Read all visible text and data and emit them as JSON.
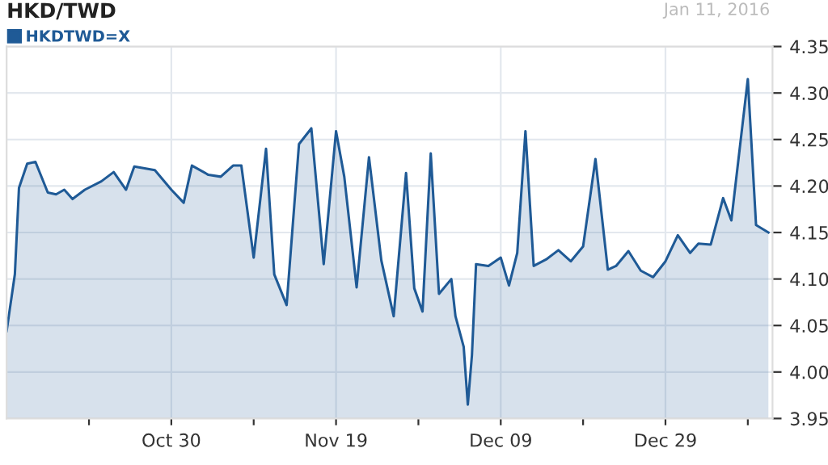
{
  "chart_data": {
    "type": "area",
    "title": "HKD/TWD",
    "subtitle": "Jan 11, 2016",
    "x": [
      "2015-10-10",
      "2015-10-11",
      "2015-10-11T12:00",
      "2015-10-12T12:00",
      "2015-10-13T12:00",
      "2015-10-15",
      "2015-10-16",
      "2015-10-17",
      "2015-10-18",
      "2015-10-19T12:00",
      "2015-10-21T12:00",
      "2015-10-23",
      "2015-10-24T12:00",
      "2015-10-25T12:00",
      "2015-10-28",
      "2015-10-30",
      "2015-10-31T12:00",
      "2015-11-01T12:00",
      "2015-11-03T12:00",
      "2015-11-05",
      "2015-11-06T12:00",
      "2015-11-07T12:00",
      "2015-11-09",
      "2015-11-10T12:00",
      "2015-11-11T12:00",
      "2015-11-13",
      "2015-11-14T12:00",
      "2015-11-16",
      "2015-11-17T12:00",
      "2015-11-19",
      "2015-11-20",
      "2015-11-21T12:00",
      "2015-11-23",
      "2015-11-24T12:00",
      "2015-11-26",
      "2015-11-27T12:00",
      "2015-11-28T12:00",
      "2015-11-29T12:00",
      "2015-11-30T12:00",
      "2015-12-01T12:00",
      "2015-12-03",
      "2015-12-03T12:00",
      "2015-12-04T12:00",
      "2015-12-05",
      "2015-12-05T12:00",
      "2015-12-06",
      "2015-12-07T12:00",
      "2015-12-09",
      "2015-12-10",
      "2015-12-11",
      "2015-12-12",
      "2015-12-13",
      "2015-12-14T12:00",
      "2015-12-16",
      "2015-12-17T12:00",
      "2015-12-19",
      "2015-12-20T12:00",
      "2015-12-22",
      "2015-12-23",
      "2015-12-24T12:00",
      "2015-12-26",
      "2015-12-27T12:00",
      "2015-12-29",
      "2015-12-30T12:00",
      "2016-01-01",
      "2016-01-02",
      "2016-01-03T12:00",
      "2016-01-05",
      "2016-01-06",
      "2016-01-08",
      "2016-01-09",
      "2016-01-10T12:00"
    ],
    "series": [
      {
        "name": "HKDTWD=X",
        "color": "#1f5a96",
        "values": [
          4.044,
          4.105,
          4.198,
          4.224,
          4.226,
          4.193,
          4.191,
          4.196,
          4.186,
          4.196,
          4.205,
          4.215,
          4.196,
          4.221,
          4.217,
          4.196,
          4.182,
          4.222,
          4.212,
          4.21,
          4.222,
          4.222,
          4.123,
          4.24,
          4.105,
          4.072,
          4.245,
          4.262,
          4.116,
          4.259,
          4.21,
          4.091,
          4.231,
          4.12,
          4.06,
          4.214,
          4.09,
          4.065,
          4.235,
          4.084,
          4.1,
          4.06,
          4.027,
          3.965,
          4.018,
          4.116,
          4.114,
          4.123,
          4.093,
          4.128,
          4.259,
          4.114,
          4.121,
          4.131,
          4.119,
          4.135,
          4.229,
          4.11,
          4.114,
          4.13,
          4.109,
          4.102,
          4.119,
          4.147,
          4.128,
          4.138,
          4.137,
          4.187,
          4.163,
          4.315,
          4.158,
          4.15
        ]
      }
    ],
    "xlim": [
      "2015-10-10",
      "2016-01-11"
    ],
    "xticks": [
      {
        "value": "2015-10-20",
        "label": null
      },
      {
        "value": "2015-10-30",
        "label": "Oct 30"
      },
      {
        "value": "2015-11-09",
        "label": null
      },
      {
        "value": "2015-11-19",
        "label": "Nov 19"
      },
      {
        "value": "2015-11-29",
        "label": null
      },
      {
        "value": "2015-12-09",
        "label": "Dec 09"
      },
      {
        "value": "2015-12-19",
        "label": null
      },
      {
        "value": "2015-12-29",
        "label": "Dec 29"
      },
      {
        "value": "2016-01-08",
        "label": null
      }
    ],
    "ylim": [
      3.95,
      4.35
    ],
    "yticks": [
      {
        "value": 3.95,
        "label": "3.95"
      },
      {
        "value": 4.0,
        "label": "4.00"
      },
      {
        "value": 4.05,
        "label": "4.05"
      },
      {
        "value": 4.1,
        "label": "4.10"
      },
      {
        "value": 4.15,
        "label": "4.15"
      },
      {
        "value": 4.2,
        "label": "4.20"
      },
      {
        "value": 4.25,
        "label": "4.25"
      },
      {
        "value": 4.3,
        "label": "4.30"
      },
      {
        "value": 4.35,
        "label": "4.35"
      }
    ],
    "grid": true,
    "legend": "top left",
    "marker": "none",
    "line_style": "solid"
  }
}
